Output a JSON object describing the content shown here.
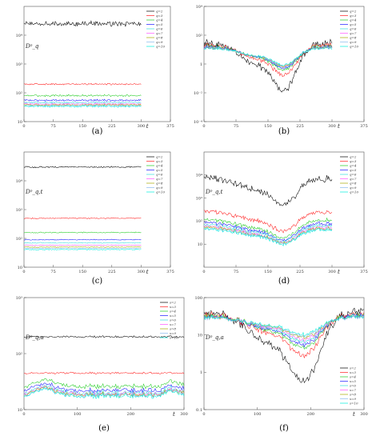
{
  "chart_data": [
    {
      "id": "a",
      "type": "line",
      "caption": "(a)",
      "ylabel": "Dᵖ_q",
      "xlabel": "t",
      "yscale": "log",
      "ylim": [
        10,
        100000
      ],
      "xlim": [
        0,
        375
      ],
      "yticks": [
        10,
        100,
        1000,
        10000
      ],
      "yticklabels": [
        "10",
        "10²",
        "10³",
        "10⁴"
      ],
      "xticks": [
        0,
        75,
        150,
        225,
        300,
        375
      ],
      "xticklabels": [
        "0",
        "75",
        "150",
        "225",
        "300",
        "375"
      ],
      "legend": "top-right",
      "series": [
        {
          "name": "q=2",
          "color": "#000000",
          "x_range": [
            0,
            300
          ],
          "level": 25000,
          "vol": 0.1,
          "pat": "flat"
        },
        {
          "name": "q=3",
          "color": "#ff2020",
          "x_range": [
            0,
            300
          ],
          "level": 200,
          "vol": 0.03,
          "pat": "flat"
        },
        {
          "name": "q=4",
          "color": "#22cc22",
          "x_range": [
            0,
            300
          ],
          "level": 80,
          "vol": 0.04,
          "pat": "flat"
        },
        {
          "name": "q=5",
          "color": "#1a1aff",
          "x_range": [
            0,
            300
          ],
          "level": 55,
          "vol": 0.04,
          "pat": "flat"
        },
        {
          "name": "q=6",
          "color": "#33dddd",
          "x_range": [
            0,
            300
          ],
          "level": 46,
          "vol": 0.04,
          "pat": "flat"
        },
        {
          "name": "q=7",
          "color": "#ff55ff",
          "x_range": [
            0,
            300
          ],
          "level": 41,
          "vol": 0.04,
          "pat": "flat"
        },
        {
          "name": "q=8",
          "color": "#aaaa00",
          "x_range": [
            0,
            300
          ],
          "level": 38,
          "vol": 0.04,
          "pat": "flat"
        },
        {
          "name": "q=9",
          "color": "#88bbee",
          "x_range": [
            0,
            300
          ],
          "level": 36,
          "vol": 0.04,
          "pat": "flat"
        },
        {
          "name": "q=10",
          "color": "#00eedd",
          "x_range": [
            0,
            300
          ],
          "level": 34,
          "vol": 0.04,
          "pat": "flat"
        }
      ]
    },
    {
      "id": "b",
      "type": "line",
      "caption": "(b)",
      "ylabel": "Dᵖ_q",
      "xlabel": "t",
      "yscale": "log",
      "ylim": [
        0.0001,
        10000
      ],
      "xlim": [
        0,
        375
      ],
      "yticks": [
        0.0001,
        0.01,
        1,
        100,
        10000
      ],
      "yticklabels": [
        "10⁻⁴",
        "10⁻²",
        "1",
        "10²",
        "10⁴"
      ],
      "xticks": [
        0,
        75,
        150,
        225,
        300,
        375
      ],
      "xticklabels": [
        "0",
        "75",
        "150",
        "225",
        "300",
        "375"
      ],
      "legend": "top-right",
      "series": [
        {
          "name": "q=2",
          "color": "#000000",
          "x_range": [
            0,
            300
          ],
          "level": 30,
          "vol": 0.3,
          "pat": "valley",
          "depth": 3.0
        },
        {
          "name": "q=3",
          "color": "#ff2020",
          "x_range": [
            0,
            300
          ],
          "level": 22,
          "vol": 0.18,
          "pat": "valley",
          "depth": 1.9
        },
        {
          "name": "q=4",
          "color": "#22cc22",
          "x_range": [
            0,
            300
          ],
          "level": 18,
          "vol": 0.14,
          "pat": "valley",
          "depth": 1.5
        },
        {
          "name": "q=5",
          "color": "#1a1aff",
          "x_range": [
            0,
            300
          ],
          "level": 16,
          "vol": 0.12,
          "pat": "valley",
          "depth": 1.35
        },
        {
          "name": "q=6",
          "color": "#33dddd",
          "x_range": [
            0,
            300
          ],
          "level": 15,
          "vol": 0.11,
          "pat": "valley",
          "depth": 1.25
        },
        {
          "name": "q=7",
          "color": "#ff55ff",
          "x_range": [
            0,
            300
          ],
          "level": 14,
          "vol": 0.1,
          "pat": "valley",
          "depth": 1.2
        },
        {
          "name": "q=8",
          "color": "#aaaa00",
          "x_range": [
            0,
            300
          ],
          "level": 13.5,
          "vol": 0.1,
          "pat": "valley",
          "depth": 1.15
        },
        {
          "name": "q=9",
          "color": "#88bbee",
          "x_range": [
            0,
            300
          ],
          "level": 13,
          "vol": 0.1,
          "pat": "valley",
          "depth": 1.1
        },
        {
          "name": "q=10",
          "color": "#00eedd",
          "x_range": [
            0,
            300
          ],
          "level": 12.5,
          "vol": 0.1,
          "pat": "valley",
          "depth": 1.05
        }
      ]
    },
    {
      "id": "c",
      "type": "line",
      "caption": "(c)",
      "ylabel": "Dᵖ_q,t",
      "xlabel": "t",
      "yscale": "log",
      "ylim": [
        10,
        100000
      ],
      "xlim": [
        0,
        375
      ],
      "yticks": [
        10,
        100,
        1000,
        10000
      ],
      "yticklabels": [
        "10",
        "10²",
        "10³",
        "10⁴"
      ],
      "xticks": [
        0,
        75,
        150,
        225,
        300,
        375
      ],
      "xticklabels": [
        "0",
        "75",
        "150",
        "225",
        "300",
        "375"
      ],
      "legend": "top-right",
      "series": [
        {
          "name": "q=2",
          "color": "#000000",
          "x_range": [
            0,
            300
          ],
          "level": 30000,
          "vol": 0.03,
          "pat": "flat"
        },
        {
          "name": "q=3",
          "color": "#ff2020",
          "x_range": [
            0,
            300
          ],
          "level": 500,
          "vol": 0.02,
          "pat": "flat"
        },
        {
          "name": "q=4",
          "color": "#22cc22",
          "x_range": [
            0,
            300
          ],
          "level": 160,
          "vol": 0.02,
          "pat": "flat"
        },
        {
          "name": "q=5",
          "color": "#1a1aff",
          "x_range": [
            0,
            300
          ],
          "level": 90,
          "vol": 0.02,
          "pat": "flat"
        },
        {
          "name": "q=6",
          "color": "#33dddd",
          "x_range": [
            0,
            300
          ],
          "level": 70,
          "vol": 0.02,
          "pat": "flat"
        },
        {
          "name": "q=7",
          "color": "#ff55ff",
          "x_range": [
            0,
            300
          ],
          "level": 58,
          "vol": 0.02,
          "pat": "flat"
        },
        {
          "name": "q=8",
          "color": "#aaaa00",
          "x_range": [
            0,
            300
          ],
          "level": 50,
          "vol": 0.02,
          "pat": "flat"
        },
        {
          "name": "q=9",
          "color": "#88bbee",
          "x_range": [
            0,
            300
          ],
          "level": 45,
          "vol": 0.02,
          "pat": "flat"
        },
        {
          "name": "q=10",
          "color": "#00eedd",
          "x_range": [
            0,
            300
          ],
          "level": 41,
          "vol": 0.02,
          "pat": "flat"
        }
      ]
    },
    {
      "id": "d",
      "type": "line",
      "caption": "(d)",
      "ylabel": "Dᵖ_q,t",
      "xlabel": "t",
      "yscale": "log",
      "ylim": [
        1,
        100000
      ],
      "xlim": [
        0,
        375
      ],
      "yticks": [
        10,
        100,
        1000,
        10000
      ],
      "yticklabels": [
        "10",
        "10²",
        "10³",
        "10⁴"
      ],
      "xticks": [
        0,
        75,
        150,
        225,
        300,
        375
      ],
      "xticklabels": [
        "0",
        "75",
        "150",
        "225",
        "300",
        "375"
      ],
      "legend": "top-right",
      "series": [
        {
          "name": "q=2",
          "color": "#000000",
          "x_range": [
            0,
            300
          ],
          "level": 7000,
          "vol": 0.18,
          "pat": "valley",
          "depth": 1.0
        },
        {
          "name": "q=3",
          "color": "#ff2020",
          "x_range": [
            0,
            300
          ],
          "level": 250,
          "vol": 0.12,
          "pat": "valley",
          "depth": 0.75
        },
        {
          "name": "q=4",
          "color": "#22cc22",
          "x_range": [
            0,
            300
          ],
          "level": 110,
          "vol": 0.1,
          "pat": "valley",
          "depth": 0.7
        },
        {
          "name": "q=5",
          "color": "#1a1aff",
          "x_range": [
            0,
            300
          ],
          "level": 80,
          "vol": 0.1,
          "pat": "valley",
          "depth": 0.65
        },
        {
          "name": "q=6",
          "color": "#33dddd",
          "x_range": [
            0,
            300
          ],
          "level": 65,
          "vol": 0.1,
          "pat": "valley",
          "depth": 0.6
        },
        {
          "name": "q=7",
          "color": "#ff55ff",
          "x_range": [
            0,
            300
          ],
          "level": 55,
          "vol": 0.1,
          "pat": "valley",
          "depth": 0.6
        },
        {
          "name": "q=8",
          "color": "#aaaa00",
          "x_range": [
            0,
            300
          ],
          "level": 50,
          "vol": 0.1,
          "pat": "valley",
          "depth": 0.58
        },
        {
          "name": "q=9",
          "color": "#88bbee",
          "x_range": [
            0,
            300
          ],
          "level": 46,
          "vol": 0.1,
          "pat": "valley",
          "depth": 0.56
        },
        {
          "name": "q=10",
          "color": "#00eedd",
          "x_range": [
            0,
            300
          ],
          "level": 42,
          "vol": 0.1,
          "pat": "valley",
          "depth": 0.55
        }
      ]
    },
    {
      "id": "e",
      "type": "line",
      "caption": "(e)",
      "ylabel": "Dᵖ_q,a",
      "xlabel": "t",
      "yscale": "log",
      "ylim": [
        10,
        1000
      ],
      "xlim": [
        0,
        300
      ],
      "yticks": [
        10,
        100,
        1000
      ],
      "yticklabels": [
        "10",
        "10²",
        "10³"
      ],
      "xticks": [
        0,
        100,
        200,
        300
      ],
      "xticklabels": [
        "0",
        "100",
        "200",
        "300"
      ],
      "legend": "top-right",
      "series": [
        {
          "name": "s=2",
          "color": "#000000",
          "x_range": [
            0,
            300
          ],
          "level": 200,
          "vol": 0.02,
          "pat": "flat"
        },
        {
          "name": "s=3",
          "color": "#ff2020",
          "x_range": [
            0,
            300
          ],
          "level": 45,
          "vol": 0.02,
          "pat": "flat"
        },
        {
          "name": "s=4",
          "color": "#22cc22",
          "x_range": [
            0,
            300
          ],
          "level": 26,
          "vol": 0.05,
          "pat": "bump"
        },
        {
          "name": "s=5",
          "color": "#1a1aff",
          "x_range": [
            0,
            300
          ],
          "level": 22,
          "vol": 0.05,
          "pat": "bump"
        },
        {
          "name": "s=6",
          "color": "#33dddd",
          "x_range": [
            0,
            300
          ],
          "level": 20,
          "vol": 0.05,
          "pat": "bump"
        },
        {
          "name": "s=7",
          "color": "#ff55ff",
          "x_range": [
            0,
            300
          ],
          "level": 19,
          "vol": 0.05,
          "pat": "bump"
        },
        {
          "name": "s=8",
          "color": "#aaaa00",
          "x_range": [
            0,
            300
          ],
          "level": 18.5,
          "vol": 0.05,
          "pat": "bump"
        },
        {
          "name": "s=9",
          "color": "#88bbee",
          "x_range": [
            0,
            300
          ],
          "level": 18,
          "vol": 0.05,
          "pat": "bump"
        },
        {
          "name": "s=10",
          "color": "#00eedd",
          "x_range": [
            0,
            300
          ],
          "level": 17.5,
          "vol": 0.05,
          "pat": "bump"
        }
      ]
    },
    {
      "id": "f",
      "type": "line",
      "caption": "(f)",
      "ylabel": "Dᵖ_q,a",
      "xlabel": "t",
      "yscale": "log",
      "ylim": [
        0.1,
        100
      ],
      "xlim": [
        0,
        300
      ],
      "yticks": [
        0.1,
        1,
        10,
        100
      ],
      "yticklabels": [
        "0.1",
        "1",
        "10",
        "100"
      ],
      "xticks": [
        0,
        100,
        200,
        300
      ],
      "xticklabels": [
        "0",
        "100",
        "200",
        "300"
      ],
      "legend": "bottom-right",
      "series": [
        {
          "name": "s=2",
          "color": "#000000",
          "x_range": [
            0,
            300
          ],
          "level": 40,
          "vol": 0.15,
          "pat": "valley",
          "depth": 1.7
        },
        {
          "name": "s=3",
          "color": "#ff2020",
          "x_range": [
            0,
            300
          ],
          "level": 35,
          "vol": 0.1,
          "pat": "valley",
          "depth": 1.0
        },
        {
          "name": "s=4",
          "color": "#22cc22",
          "x_range": [
            0,
            300
          ],
          "level": 33,
          "vol": 0.08,
          "pat": "valley",
          "depth": 0.8
        },
        {
          "name": "s=5",
          "color": "#1a1aff",
          "x_range": [
            0,
            300
          ],
          "level": 32,
          "vol": 0.08,
          "pat": "valley",
          "depth": 0.7
        },
        {
          "name": "s=6",
          "color": "#33dddd",
          "x_range": [
            0,
            300
          ],
          "level": 31,
          "vol": 0.07,
          "pat": "valley",
          "depth": 0.62
        },
        {
          "name": "s=7",
          "color": "#ff55ff",
          "x_range": [
            0,
            300
          ],
          "level": 30,
          "vol": 0.07,
          "pat": "valley",
          "depth": 0.55
        },
        {
          "name": "s=8",
          "color": "#aaaa00",
          "x_range": [
            0,
            300
          ],
          "level": 30,
          "vol": 0.07,
          "pat": "valley",
          "depth": 0.5
        },
        {
          "name": "s=9",
          "color": "#88bbee",
          "x_range": [
            0,
            300
          ],
          "level": 29,
          "vol": 0.07,
          "pat": "valley",
          "depth": 0.46
        },
        {
          "name": "s=10",
          "color": "#00eedd",
          "x_range": [
            0,
            300
          ],
          "level": 29,
          "vol": 0.07,
          "pat": "valley",
          "depth": 0.42
        }
      ]
    }
  ]
}
